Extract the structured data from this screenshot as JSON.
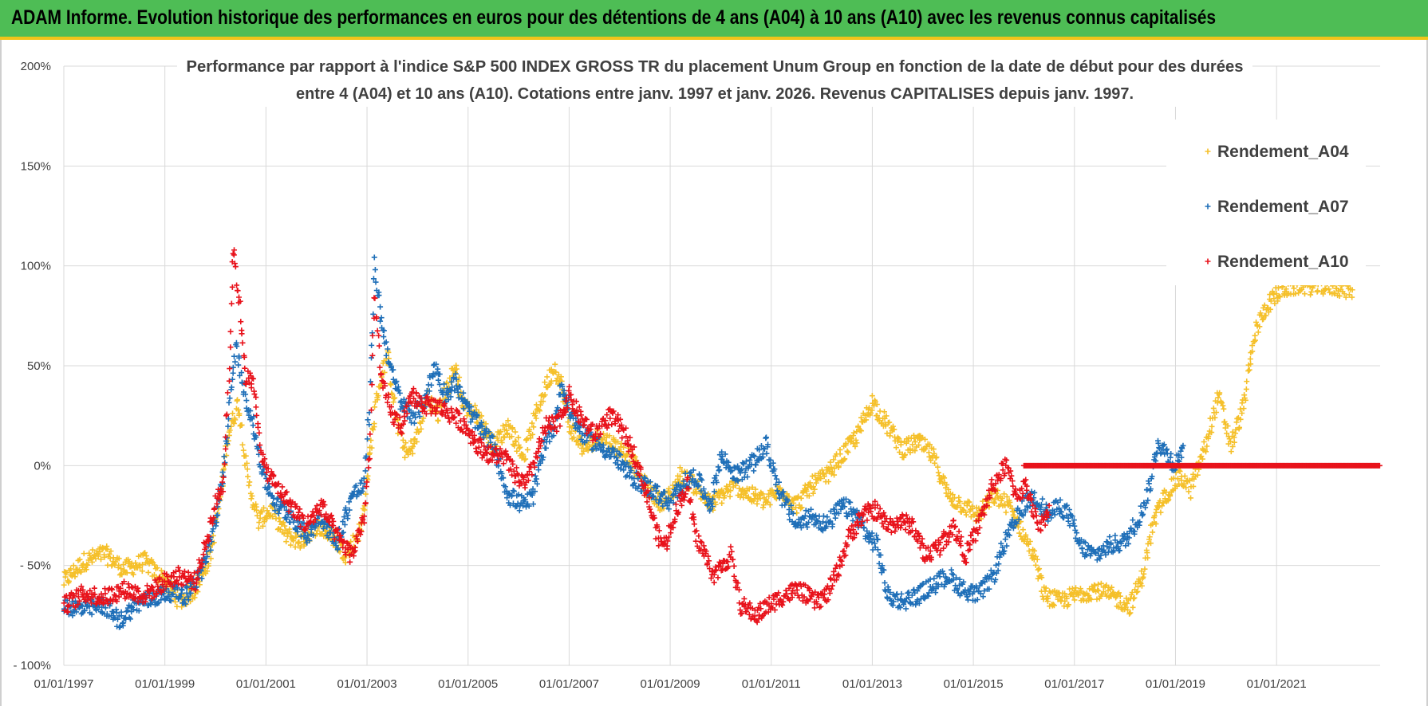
{
  "banner": {
    "title": "ADAM Informe. Evolution historique des performances en euros pour des détentions de 4 ans (A04) à 10 ans (A10) avec les revenus connus capitalisés"
  },
  "chart_data": {
    "type": "scatter",
    "title_lines": [
      "Performance par rapport à l'indice S&P 500 INDEX GROSS TR  du placement Unum Group en fonction de la date de début pour des durées",
      "entre 4 (A04) et 10 ans (A10).  Cotations entre janv. 1997 et janv. 2026. Revenus CAPITALISES depuis janv. 1997."
    ],
    "x_start_year": 1997,
    "x_end_year": 2023.05,
    "x_tick_labels": [
      "01/01/1997",
      "01/01/1999",
      "01/01/2001",
      "01/01/2003",
      "01/01/2005",
      "01/01/2007",
      "01/01/2009",
      "01/01/2011",
      "01/01/2013",
      "01/01/2015",
      "01/01/2017",
      "01/01/2019",
      "01/01/2021"
    ],
    "y_tick_values": [
      200,
      150,
      100,
      50,
      0,
      -50,
      -100
    ],
    "y_tick_labels": [
      "200%",
      "150%",
      "100%",
      "50%",
      "0%",
      "- 50%",
      "- 100%"
    ],
    "ylim": [
      -100,
      200
    ],
    "legend_position": "top-right",
    "series": [
      {
        "name": "Rendement_A04",
        "color": "#f5c02a",
        "points": [
          [
            1997.0,
            -58
          ],
          [
            1997.4,
            -48
          ],
          [
            1997.8,
            -44
          ],
          [
            1998.2,
            -52
          ],
          [
            1998.6,
            -48
          ],
          [
            1999.0,
            -58
          ],
          [
            1999.3,
            -68
          ],
          [
            1999.6,
            -62
          ],
          [
            1999.9,
            -45
          ],
          [
            2000.1,
            -15
          ],
          [
            2000.25,
            15
          ],
          [
            2000.45,
            32
          ],
          [
            2000.65,
            -8
          ],
          [
            2000.85,
            -28
          ],
          [
            2001.1,
            -22
          ],
          [
            2001.4,
            -35
          ],
          [
            2001.7,
            -38
          ],
          [
            2002.0,
            -30
          ],
          [
            2002.3,
            -35
          ],
          [
            2002.6,
            -45
          ],
          [
            2002.9,
            -30
          ],
          [
            2003.05,
            5
          ],
          [
            2003.2,
            35
          ],
          [
            2003.4,
            55
          ],
          [
            2003.6,
            20
          ],
          [
            2003.8,
            5
          ],
          [
            2004.0,
            15
          ],
          [
            2004.2,
            35
          ],
          [
            2004.4,
            25
          ],
          [
            2004.6,
            40
          ],
          [
            2004.75,
            50
          ],
          [
            2004.9,
            30
          ],
          [
            2005.2,
            25
          ],
          [
            2005.5,
            10
          ],
          [
            2005.8,
            20
          ],
          [
            2006.1,
            5
          ],
          [
            2006.4,
            30
          ],
          [
            2006.7,
            50
          ],
          [
            2006.85,
            40
          ],
          [
            2007.0,
            20
          ],
          [
            2007.3,
            8
          ],
          [
            2007.6,
            15
          ],
          [
            2007.9,
            10
          ],
          [
            2008.2,
            5
          ],
          [
            2008.5,
            -10
          ],
          [
            2008.8,
            -18
          ],
          [
            2009.0,
            -15
          ],
          [
            2009.2,
            -5
          ],
          [
            2009.5,
            -10
          ],
          [
            2009.8,
            -20
          ],
          [
            2010.0,
            -15
          ],
          [
            2010.3,
            -10
          ],
          [
            2010.6,
            -15
          ],
          [
            2010.9,
            -18
          ],
          [
            2011.2,
            -12
          ],
          [
            2011.5,
            -20
          ],
          [
            2011.8,
            -10
          ],
          [
            2012.1,
            -5
          ],
          [
            2012.4,
            5
          ],
          [
            2012.7,
            15
          ],
          [
            2013.0,
            32
          ],
          [
            2013.3,
            20
          ],
          [
            2013.6,
            8
          ],
          [
            2013.9,
            12
          ],
          [
            2014.2,
            5
          ],
          [
            2014.5,
            -15
          ],
          [
            2014.8,
            -20
          ],
          [
            2015.1,
            -25
          ],
          [
            2015.4,
            -15
          ],
          [
            2015.7,
            -20
          ],
          [
            2016.0,
            -35
          ],
          [
            2016.2,
            -45
          ],
          [
            2016.4,
            -65
          ],
          [
            2016.7,
            -68
          ],
          [
            2017.0,
            -65
          ],
          [
            2017.4,
            -62
          ],
          [
            2017.8,
            -66
          ],
          [
            2018.1,
            -70
          ],
          [
            2018.35,
            -55
          ],
          [
            2018.55,
            -30
          ],
          [
            2018.8,
            -15
          ],
          [
            2019.1,
            -5
          ],
          [
            2019.3,
            -12
          ],
          [
            2019.6,
            10
          ],
          [
            2019.85,
            35
          ],
          [
            2020.1,
            10
          ],
          [
            2020.35,
            30
          ],
          [
            2020.5,
            55
          ],
          [
            2020.6,
            68
          ],
          [
            2020.8,
            80
          ],
          [
            2021.1,
            88
          ],
          [
            2021.35,
            90
          ],
          [
            2022.0,
            90
          ],
          [
            2022.5,
            88
          ]
        ]
      },
      {
        "name": "Rendement_A07",
        "color": "#1f6fb8",
        "points": [
          [
            1997.0,
            -70
          ],
          [
            1997.4,
            -72
          ],
          [
            1997.8,
            -70
          ],
          [
            1998.1,
            -78
          ],
          [
            1998.4,
            -70
          ],
          [
            1998.8,
            -66
          ],
          [
            1999.1,
            -63
          ],
          [
            1999.4,
            -65
          ],
          [
            1999.7,
            -55
          ],
          [
            2000.0,
            -30
          ],
          [
            2000.15,
            -5
          ],
          [
            2000.25,
            20
          ],
          [
            2000.4,
            60
          ],
          [
            2000.55,
            40
          ],
          [
            2000.75,
            20
          ],
          [
            2000.95,
            -5
          ],
          [
            2001.2,
            -20
          ],
          [
            2001.5,
            -25
          ],
          [
            2001.8,
            -35
          ],
          [
            2002.1,
            -25
          ],
          [
            2002.4,
            -40
          ],
          [
            2002.7,
            -15
          ],
          [
            2002.95,
            -10
          ],
          [
            2003.05,
            30
          ],
          [
            2003.15,
            100
          ],
          [
            2003.3,
            70
          ],
          [
            2003.5,
            45
          ],
          [
            2003.7,
            30
          ],
          [
            2003.9,
            25
          ],
          [
            2004.1,
            30
          ],
          [
            2004.35,
            50
          ],
          [
            2004.55,
            35
          ],
          [
            2004.75,
            42
          ],
          [
            2004.95,
            30
          ],
          [
            2005.2,
            20
          ],
          [
            2005.5,
            10
          ],
          [
            2005.8,
            -15
          ],
          [
            2006.1,
            -20
          ],
          [
            2006.3,
            -15
          ],
          [
            2006.5,
            10
          ],
          [
            2006.7,
            20
          ],
          [
            2006.85,
            40
          ],
          [
            2007.05,
            25
          ],
          [
            2007.3,
            15
          ],
          [
            2007.6,
            10
          ],
          [
            2007.9,
            5
          ],
          [
            2008.2,
            -5
          ],
          [
            2008.5,
            -10
          ],
          [
            2008.8,
            -15
          ],
          [
            2009.0,
            -20
          ],
          [
            2009.2,
            -10
          ],
          [
            2009.5,
            -5
          ],
          [
            2009.8,
            -20
          ],
          [
            2010.0,
            5
          ],
          [
            2010.3,
            -5
          ],
          [
            2010.6,
            0
          ],
          [
            2010.9,
            10
          ],
          [
            2011.2,
            -15
          ],
          [
            2011.5,
            -30
          ],
          [
            2011.8,
            -25
          ],
          [
            2012.1,
            -30
          ],
          [
            2012.4,
            -20
          ],
          [
            2012.7,
            -25
          ],
          [
            2012.9,
            -35
          ],
          [
            2013.1,
            -40
          ],
          [
            2013.3,
            -65
          ],
          [
            2013.6,
            -68
          ],
          [
            2013.9,
            -65
          ],
          [
            2014.2,
            -60
          ],
          [
            2014.5,
            -55
          ],
          [
            2014.8,
            -62
          ],
          [
            2015.1,
            -65
          ],
          [
            2015.4,
            -55
          ],
          [
            2015.6,
            -40
          ],
          [
            2015.8,
            -30
          ],
          [
            2016.0,
            -20
          ],
          [
            2016.2,
            -15
          ],
          [
            2016.5,
            -25
          ],
          [
            2016.7,
            -20
          ],
          [
            2016.9,
            -25
          ],
          [
            2017.1,
            -40
          ],
          [
            2017.4,
            -45
          ],
          [
            2017.7,
            -40
          ],
          [
            2018.0,
            -38
          ],
          [
            2018.3,
            -25
          ],
          [
            2018.5,
            -10
          ],
          [
            2018.65,
            12
          ],
          [
            2018.85,
            5
          ],
          [
            2019.0,
            0
          ],
          [
            2019.15,
            10
          ]
        ]
      },
      {
        "name": "Rendement_A10",
        "color": "#e8121b",
        "points": [
          [
            1997.0,
            -70
          ],
          [
            1997.4,
            -64
          ],
          [
            1997.8,
            -66
          ],
          [
            1998.2,
            -62
          ],
          [
            1998.6,
            -65
          ],
          [
            1999.0,
            -58
          ],
          [
            1999.3,
            -55
          ],
          [
            1999.6,
            -58
          ],
          [
            1999.85,
            -35
          ],
          [
            2000.05,
            -15
          ],
          [
            2000.15,
            -10
          ],
          [
            2000.28,
            50
          ],
          [
            2000.35,
            110
          ],
          [
            2000.5,
            75
          ],
          [
            2000.6,
            45
          ],
          [
            2000.75,
            40
          ],
          [
            2000.95,
            0
          ],
          [
            2001.2,
            -10
          ],
          [
            2001.5,
            -20
          ],
          [
            2001.8,
            -30
          ],
          [
            2002.1,
            -20
          ],
          [
            2002.4,
            -35
          ],
          [
            2002.7,
            -45
          ],
          [
            2002.95,
            -25
          ],
          [
            2003.05,
            5
          ],
          [
            2003.15,
            85
          ],
          [
            2003.3,
            40
          ],
          [
            2003.5,
            25
          ],
          [
            2003.7,
            20
          ],
          [
            2003.9,
            35
          ],
          [
            2004.15,
            30
          ],
          [
            2004.4,
            30
          ],
          [
            2004.7,
            25
          ],
          [
            2004.95,
            20
          ],
          [
            2005.2,
            10
          ],
          [
            2005.45,
            5
          ],
          [
            2005.7,
            5
          ],
          [
            2005.95,
            -5
          ],
          [
            2006.15,
            -10
          ],
          [
            2006.35,
            5
          ],
          [
            2006.55,
            20
          ],
          [
            2006.75,
            20
          ],
          [
            2007.0,
            35
          ],
          [
            2007.2,
            25
          ],
          [
            2007.5,
            15
          ],
          [
            2007.8,
            25
          ],
          [
            2008.0,
            20
          ],
          [
            2008.3,
            5
          ],
          [
            2008.55,
            -15
          ],
          [
            2008.75,
            -35
          ],
          [
            2008.9,
            -40
          ],
          [
            2009.15,
            -20
          ],
          [
            2009.35,
            -10
          ],
          [
            2009.5,
            -35
          ],
          [
            2009.7,
            -45
          ],
          [
            2009.85,
            -55
          ],
          [
            2010.05,
            -50
          ],
          [
            2010.2,
            -45
          ],
          [
            2010.4,
            -70
          ],
          [
            2010.7,
            -75
          ],
          [
            2010.95,
            -70
          ],
          [
            2011.25,
            -65
          ],
          [
            2011.55,
            -62
          ],
          [
            2011.85,
            -68
          ],
          [
            2012.1,
            -65
          ],
          [
            2012.35,
            -50
          ],
          [
            2012.55,
            -35
          ],
          [
            2012.8,
            -25
          ],
          [
            2013.05,
            -22
          ],
          [
            2013.3,
            -30
          ],
          [
            2013.55,
            -28
          ],
          [
            2013.8,
            -30
          ],
          [
            2014.05,
            -45
          ],
          [
            2014.35,
            -40
          ],
          [
            2014.6,
            -30
          ],
          [
            2014.85,
            -45
          ],
          [
            2015.1,
            -30
          ],
          [
            2015.3,
            -15
          ],
          [
            2015.5,
            -5
          ],
          [
            2015.65,
            0
          ],
          [
            2015.85,
            -15
          ],
          [
            2016.05,
            -10
          ],
          [
            2016.2,
            -25
          ],
          [
            2016.35,
            -30
          ],
          [
            2016.5,
            -20
          ]
        ]
      }
    ],
    "zero_line": {
      "series": "Rendement_A10",
      "from": 2016.0,
      "to": 2023.05,
      "value": 0
    }
  }
}
